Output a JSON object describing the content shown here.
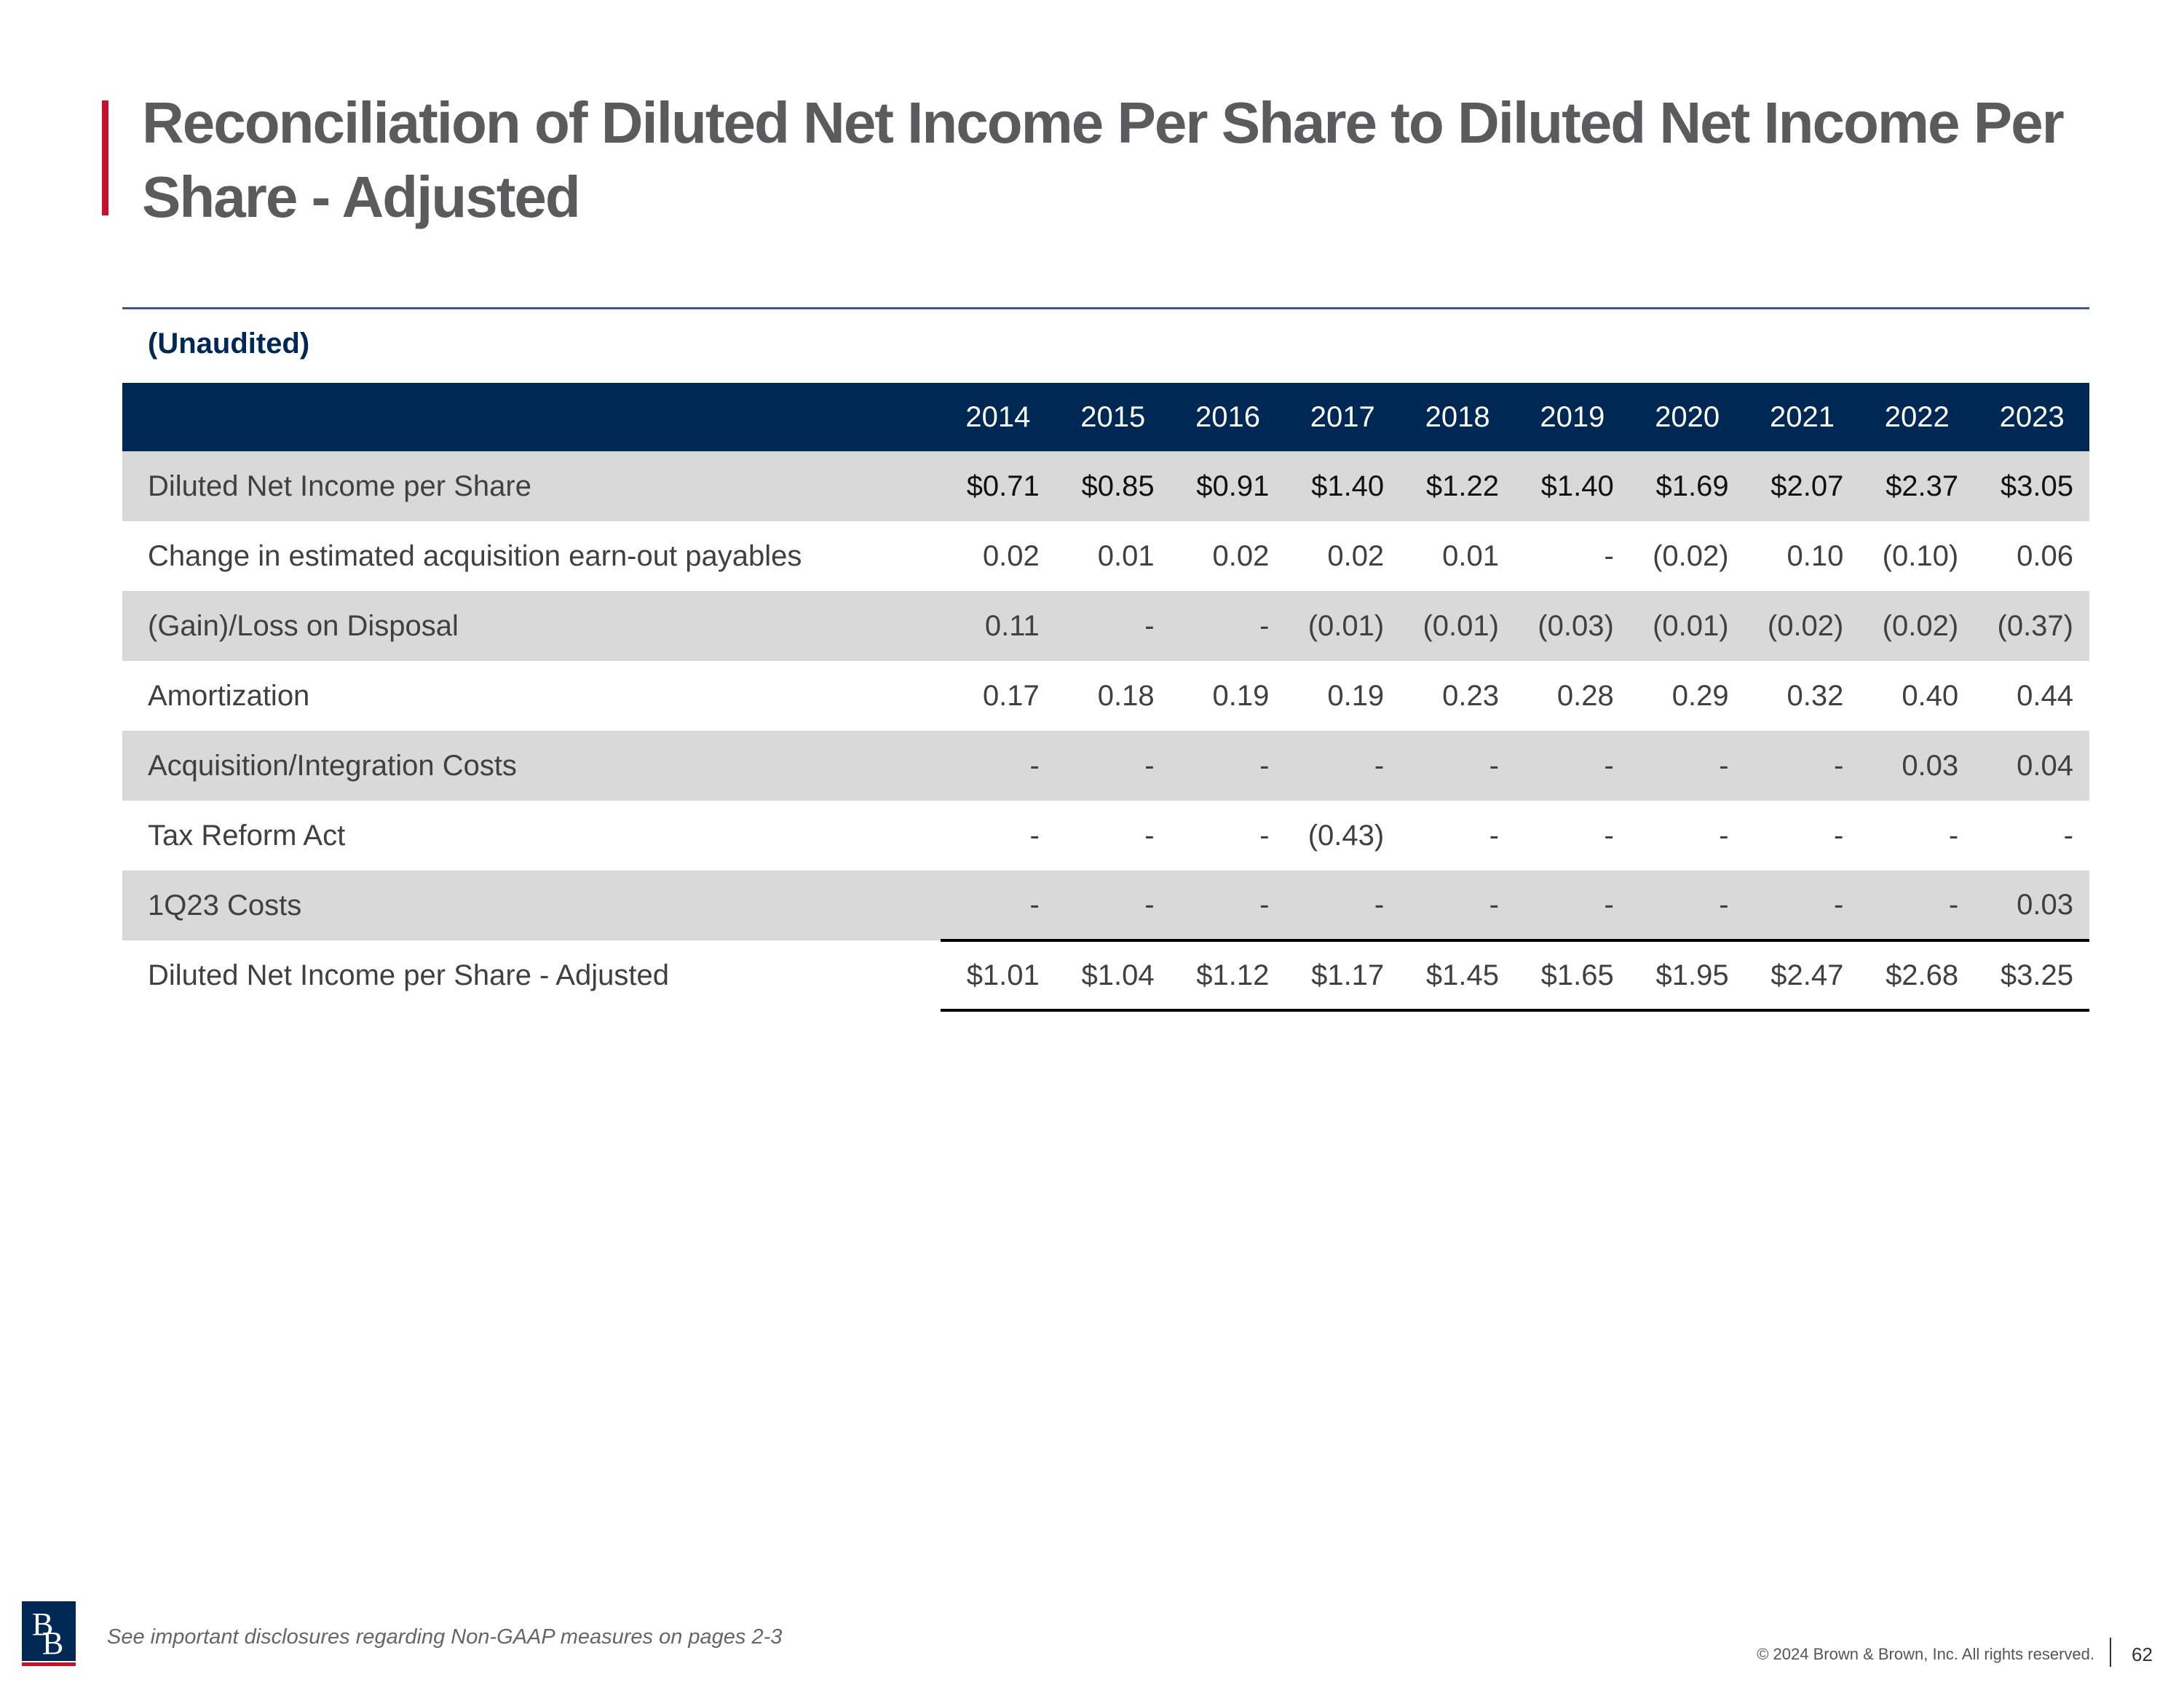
{
  "title": "Reconciliation of Diluted Net Income Per Share to Diluted Net Income Per Share - Adjusted",
  "subtitle": "(Unaudited)",
  "years": [
    "2014",
    "2015",
    "2016",
    "2017",
    "2018",
    "2019",
    "2020",
    "2021",
    "2022",
    "2023"
  ],
  "rows": [
    {
      "label": "Diluted Net Income per Share",
      "values": [
        "$0.71",
        "$0.85",
        "$0.91",
        "$1.40",
        "$1.22",
        "$1.40",
        "$1.69",
        "$2.07",
        "$2.37",
        "$3.05"
      ]
    },
    {
      "label": "Change in estimated acquisition earn-out payables",
      "values": [
        "0.02",
        "0.01",
        "0.02",
        "0.02",
        "0.01",
        "-",
        "(0.02)",
        "0.10",
        "(0.10)",
        "0.06"
      ]
    },
    {
      "label": "(Gain)/Loss on Disposal",
      "values": [
        "0.11",
        "-",
        "-",
        "(0.01)",
        "(0.01)",
        "(0.03)",
        "(0.01)",
        "(0.02)",
        "(0.02)",
        "(0.37)"
      ]
    },
    {
      "label": "Amortization",
      "values": [
        "0.17",
        "0.18",
        "0.19",
        "0.19",
        "0.23",
        "0.28",
        "0.29",
        "0.32",
        "0.40",
        "0.44"
      ]
    },
    {
      "label": "Acquisition/Integration Costs",
      "values": [
        "-",
        "-",
        "-",
        "-",
        "-",
        "-",
        "-",
        "-",
        "0.03",
        "0.04"
      ]
    },
    {
      "label": "Tax Reform Act",
      "values": [
        "-",
        "-",
        "-",
        "(0.43)",
        "-",
        "-",
        "-",
        "-",
        "-",
        "-"
      ]
    },
    {
      "label": "1Q23 Costs",
      "values": [
        "-",
        "-",
        "-",
        "-",
        "-",
        "-",
        "-",
        "-",
        "-",
        "0.03"
      ]
    },
    {
      "label": "Diluted Net Income per Share - Adjusted",
      "values": [
        "$1.01",
        "$1.04",
        "$1.12",
        "$1.17",
        "$1.45",
        "$1.65",
        "$1.95",
        "$2.47",
        "$2.68",
        "$3.25"
      ]
    }
  ],
  "footer": {
    "disclosure": "See important disclosures regarding Non-GAAP measures on pages 2-3",
    "copyright": "© 2024 Brown & Brown, Inc. All rights reserved.",
    "page_number": "62",
    "logo_letters": [
      "B",
      "B"
    ]
  },
  "colors": {
    "accent": "#c8102e",
    "header_fill": "#002855",
    "shaded_row": "#d9d9d9",
    "title_text": "#5a5b5c"
  }
}
